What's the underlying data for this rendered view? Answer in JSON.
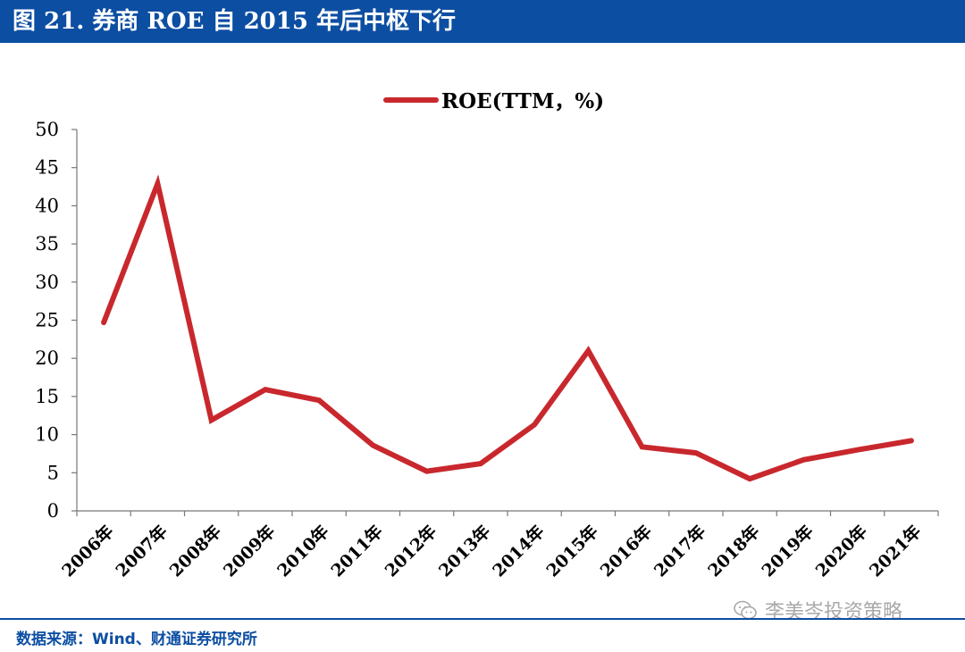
{
  "header": {
    "title": "图 21. 券商 ROE 自 2015 年后中枢下行"
  },
  "chart_data": {
    "type": "line",
    "title": "",
    "xlabel": "",
    "ylabel": "",
    "ylim": [
      0,
      50
    ],
    "yticks": [
      "0",
      "5",
      "10",
      "15",
      "20",
      "25",
      "30",
      "35",
      "40",
      "45",
      "50"
    ],
    "legend_position": "top-center",
    "categories": [
      "2006年",
      "2007年",
      "2008年",
      "2009年",
      "2010年",
      "2011年",
      "2012年",
      "2013年",
      "2014年",
      "2015年",
      "2016年",
      "2017年",
      "2018年",
      "2019年",
      "2020年",
      "2021年"
    ],
    "series": [
      {
        "name": "ROE(TTM，%)",
        "color": "#c8282d",
        "values": [
          24.7,
          42.9,
          11.9,
          15.9,
          14.5,
          8.6,
          5.2,
          6.2,
          11.3,
          21.0,
          8.4,
          7.6,
          4.2,
          6.7,
          8.0,
          9.2
        ]
      }
    ]
  },
  "footer": {
    "source": "数据来源：Wind、财通证券研究所",
    "watermark": "李美岑投资策略"
  }
}
